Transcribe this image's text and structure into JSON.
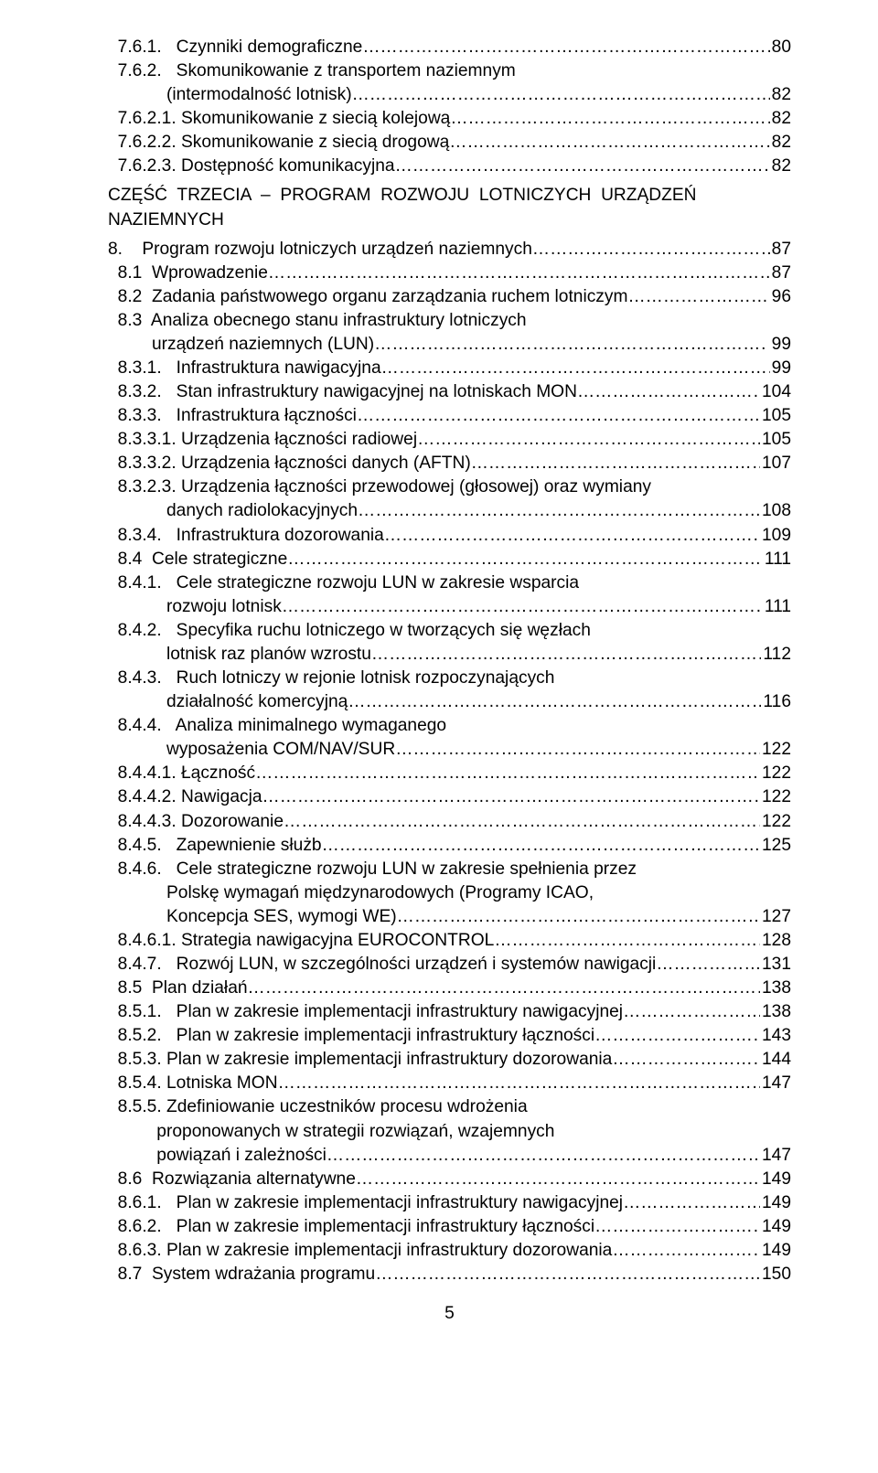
{
  "footerPageNumber": "5",
  "lines": [
    {
      "type": "toc",
      "indent": 1,
      "label": "7.6.1.   Czynniki demograficzne",
      "page": "80"
    },
    {
      "type": "plain",
      "indent": 1,
      "text": "7.6.2.   Skomunikowanie z transportem naziemnym"
    },
    {
      "type": "toc",
      "indent": 4,
      "label": "(intermodalność lotnisk)",
      "page": "82"
    },
    {
      "type": "toc",
      "indent": 1,
      "label": "7.6.2.1. Skomunikowanie z siecią kolejową",
      "page": "82"
    },
    {
      "type": "toc",
      "indent": 1,
      "label": "7.6.2.2. Skomunikowanie z siecią drogową",
      "page": "82"
    },
    {
      "type": "toc",
      "indent": 1,
      "label": "7.6.2.3. Dostępność komunikacyjna",
      "page": "82"
    },
    {
      "type": "blank"
    },
    {
      "type": "plain",
      "indent": 0,
      "text": "CZĘŚĆ  TRZECIA  –  PROGRAM  ROZWOJU  LOTNICZYCH  URZĄDZEŃ"
    },
    {
      "type": "plain",
      "indent": 0,
      "text": "NAZIEMNYCH"
    },
    {
      "type": "blank"
    },
    {
      "type": "toc",
      "indent": 0,
      "label": "8.    Program rozwoju lotniczych urządzeń naziemnych",
      "page": "87"
    },
    {
      "type": "toc",
      "indent": 1,
      "label": "8.1  Wprowadzenie",
      "page": "87"
    },
    {
      "type": "toc",
      "indent": 1,
      "label": "8.2  Zadania państwowego organu zarządzania ruchem lotniczym",
      "page": "96"
    },
    {
      "type": "plain",
      "indent": 1,
      "text": "8.3  Analiza obecnego stanu infrastruktury lotniczych"
    },
    {
      "type": "toc",
      "indent": 3,
      "label": "urządzeń naziemnych (LUN)",
      "page": " 99"
    },
    {
      "type": "toc",
      "indent": 1,
      "label": "8.3.1.   Infrastruktura nawigacyjna",
      "page": "99"
    },
    {
      "type": "toc",
      "indent": 1,
      "label": "8.3.2.   Stan infrastruktury nawigacyjnej na lotniskach MON",
      "page": "104"
    },
    {
      "type": "toc",
      "indent": 1,
      "label": "8.3.3.   Infrastruktura łączności",
      "page": "105"
    },
    {
      "type": "toc",
      "indent": 1,
      "label": "8.3.3.1. Urządzenia łączności radiowej",
      "page": "105"
    },
    {
      "type": "toc",
      "indent": 1,
      "label": "8.3.3.2. Urządzenia łączności danych (AFTN)",
      "page": "107"
    },
    {
      "type": "plain",
      "indent": 1,
      "text": "8.3.2.3. Urządzenia łączności przewodowej (głosowej) oraz wymiany"
    },
    {
      "type": "toc",
      "indent": 4,
      "label": "danych radiolokacyjnych",
      "page": "108"
    },
    {
      "type": "toc",
      "indent": 1,
      "label": "8.3.4.   Infrastruktura dozorowania",
      "page": "109"
    },
    {
      "type": "toc",
      "indent": 1,
      "label": "8.4  Cele strategiczne",
      "page": "111"
    },
    {
      "type": "plain",
      "indent": 1,
      "text": "8.4.1.   Cele strategiczne rozwoju LUN w zakresie wsparcia"
    },
    {
      "type": "toc",
      "indent": 4,
      "label": "rozwoju lotnisk",
      "page": "111"
    },
    {
      "type": "plain",
      "indent": 1,
      "text": "8.4.2.   Specyfika ruchu lotniczego w tworzących się węzłach"
    },
    {
      "type": "toc",
      "indent": 4,
      "label": "lotnisk raz planów wzrostu",
      "page": "112"
    },
    {
      "type": "plain",
      "indent": 1,
      "text": "8.4.3.   Ruch lotniczy w rejonie lotnisk rozpoczynających"
    },
    {
      "type": "toc",
      "indent": 4,
      "label": "działalność komercyjną",
      "page": "116"
    },
    {
      "type": "plain",
      "indent": 1,
      "text": "8.4.4.   Analiza minimalnego wymaganego"
    },
    {
      "type": "toc",
      "indent": 4,
      "label": "wyposażenia COM/NAV/SUR",
      "page": "122"
    },
    {
      "type": "toc",
      "indent": 1,
      "label": "8.4.4.1. Łączność",
      "page": "122"
    },
    {
      "type": "toc",
      "indent": 1,
      "label": "8.4.4.2. Nawigacja",
      "page": "122"
    },
    {
      "type": "toc",
      "indent": 1,
      "label": "8.4.4.3. Dozorowanie",
      "page": "122"
    },
    {
      "type": "toc",
      "indent": 1,
      "label": "8.4.5.   Zapewnienie służb",
      "page": "125"
    },
    {
      "type": "plain",
      "indent": 1,
      "text": "8.4.6.   Cele strategiczne rozwoju LUN w zakresie spełnienia przez"
    },
    {
      "type": "plain",
      "indent": 4,
      "text": "Polskę wymagań międzynarodowych (Programy ICAO,"
    },
    {
      "type": "toc",
      "indent": 4,
      "label": "Koncepcja SES, wymogi WE)",
      "page": "127"
    },
    {
      "type": "toc",
      "indent": 1,
      "label": "8.4.6.1. Strategia nawigacyjna EUROCONTROL",
      "page": "128"
    },
    {
      "type": "toc",
      "indent": 1,
      "label": "8.4.7.   Rozwój LUN, w szczególności urządzeń i systemów nawigacji",
      "page": "131"
    },
    {
      "type": "toc",
      "indent": 1,
      "label": "8.5  Plan działań",
      "page": "138"
    },
    {
      "type": "toc",
      "indent": 1,
      "label": "8.5.1.   Plan w zakresie implementacji infrastruktury nawigacyjnej",
      "page": "138"
    },
    {
      "type": "toc",
      "indent": 1,
      "label": "8.5.2.   Plan w zakresie implementacji infrastruktury łączności",
      "page": "143"
    },
    {
      "type": "toc",
      "indent": 1,
      "label": "8.5.3. Plan w zakresie implementacji infrastruktury dozorowania",
      "page": "144"
    },
    {
      "type": "toc",
      "indent": 1,
      "label": "8.5.4. Lotniska MON",
      "page": "147"
    },
    {
      "type": "plain",
      "indent": 1,
      "text": "8.5.5. Zdefiniowanie uczestników procesu wdrożenia"
    },
    {
      "type": "plain",
      "indent": 3,
      "text": " proponowanych w strategii rozwiązań, wzajemnych"
    },
    {
      "type": "toc",
      "indent": 3,
      "label": " powiązań i zależności",
      "page": "147"
    },
    {
      "type": "toc",
      "indent": 1,
      "label": "8.6  Rozwiązania alternatywne",
      "page": "149"
    },
    {
      "type": "toc",
      "indent": 1,
      "label": "8.6.1.   Plan w zakresie implementacji infrastruktury nawigacyjnej",
      "page": "149"
    },
    {
      "type": "toc",
      "indent": 1,
      "label": "8.6.2.   Plan w zakresie implementacji infrastruktury łączności",
      "page": "149"
    },
    {
      "type": "toc",
      "indent": 1,
      "label": "8.6.3. Plan w zakresie implementacji infrastruktury dozorowania",
      "page": "149"
    },
    {
      "type": "toc",
      "indent": 1,
      "label": "8.7  System wdrażania programu",
      "page": "150"
    }
  ],
  "indentSpaces": {
    "0": "",
    "1": "  ",
    "2": "    ",
    "3": "         ",
    "4": "            "
  }
}
